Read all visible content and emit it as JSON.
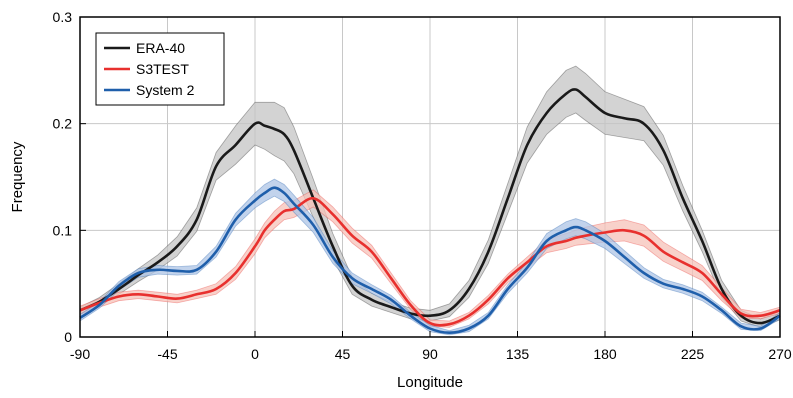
{
  "chart_data": {
    "type": "line",
    "title": "",
    "xlabel": "Longitude",
    "ylabel": "Frequency",
    "xlim": [
      -90,
      270
    ],
    "ylim": [
      0,
      0.3
    ],
    "x_ticks": [
      -90,
      -45,
      0,
      45,
      90,
      135,
      180,
      225,
      270
    ],
    "y_ticks": [
      0,
      0.1,
      0.2,
      0.3
    ],
    "x_tick_labels": [
      "-90",
      "-45",
      "0",
      "45",
      "90",
      "135",
      "180",
      "225",
      "270"
    ],
    "y_tick_labels": [
      "0",
      "0.1",
      "0.2",
      "0.3"
    ],
    "grid": true,
    "legend_position": "top-left",
    "x": [
      -90,
      -80,
      -70,
      -60,
      -50,
      -40,
      -30,
      -20,
      -10,
      0,
      5,
      10,
      15,
      20,
      30,
      40,
      50,
      60,
      70,
      80,
      90,
      100,
      110,
      120,
      130,
      140,
      150,
      160,
      165,
      170,
      180,
      190,
      200,
      210,
      220,
      230,
      240,
      250,
      260,
      270
    ],
    "series": [
      {
        "name": "ERA-40",
        "color": "#1a1a1a",
        "band_color": "#c4c4c4",
        "values": [
          0.025,
          0.033,
          0.045,
          0.058,
          0.07,
          0.085,
          0.11,
          0.16,
          0.18,
          0.2,
          0.198,
          0.195,
          0.19,
          0.175,
          0.13,
          0.085,
          0.048,
          0.035,
          0.028,
          0.022,
          0.02,
          0.025,
          0.045,
          0.08,
          0.13,
          0.18,
          0.21,
          0.228,
          0.232,
          0.225,
          0.21,
          0.205,
          0.2,
          0.175,
          0.13,
          0.09,
          0.045,
          0.02,
          0.013,
          0.02
        ],
        "band": [
          0.003,
          0.004,
          0.005,
          0.006,
          0.007,
          0.009,
          0.011,
          0.013,
          0.018,
          0.02,
          0.022,
          0.025,
          0.025,
          0.022,
          0.018,
          0.012,
          0.008,
          0.006,
          0.005,
          0.005,
          0.005,
          0.006,
          0.008,
          0.011,
          0.014,
          0.017,
          0.02,
          0.022,
          0.022,
          0.022,
          0.02,
          0.018,
          0.016,
          0.014,
          0.012,
          0.01,
          0.008,
          0.005,
          0.004,
          0.004
        ]
      },
      {
        "name": "S3TEST",
        "color": "#e8302e",
        "band_color": "#f6c2b8",
        "values": [
          0.025,
          0.032,
          0.038,
          0.04,
          0.038,
          0.036,
          0.04,
          0.045,
          0.06,
          0.085,
          0.1,
          0.11,
          0.118,
          0.12,
          0.13,
          0.115,
          0.095,
          0.08,
          0.055,
          0.03,
          0.013,
          0.012,
          0.02,
          0.035,
          0.055,
          0.07,
          0.085,
          0.09,
          0.093,
          0.095,
          0.098,
          0.1,
          0.095,
          0.08,
          0.07,
          0.06,
          0.04,
          0.022,
          0.02,
          0.025
        ],
        "band": [
          0.004,
          0.004,
          0.004,
          0.004,
          0.004,
          0.004,
          0.004,
          0.005,
          0.006,
          0.007,
          0.007,
          0.008,
          0.008,
          0.008,
          0.008,
          0.007,
          0.007,
          0.006,
          0.005,
          0.004,
          0.003,
          0.003,
          0.003,
          0.004,
          0.004,
          0.005,
          0.006,
          0.007,
          0.007,
          0.008,
          0.009,
          0.01,
          0.01,
          0.009,
          0.008,
          0.007,
          0.006,
          0.004,
          0.003,
          0.003
        ]
      },
      {
        "name": "System 2",
        "color": "#1f5fab",
        "band_color": "#aec4e6",
        "values": [
          0.018,
          0.03,
          0.048,
          0.06,
          0.063,
          0.062,
          0.063,
          0.08,
          0.11,
          0.128,
          0.135,
          0.14,
          0.135,
          0.125,
          0.105,
          0.075,
          0.055,
          0.045,
          0.035,
          0.02,
          0.008,
          0.004,
          0.008,
          0.02,
          0.045,
          0.065,
          0.09,
          0.1,
          0.103,
          0.1,
          0.09,
          0.075,
          0.06,
          0.05,
          0.045,
          0.038,
          0.025,
          0.01,
          0.008,
          0.02
        ],
        "band": [
          0.003,
          0.003,
          0.004,
          0.004,
          0.004,
          0.004,
          0.004,
          0.005,
          0.006,
          0.007,
          0.008,
          0.008,
          0.008,
          0.008,
          0.007,
          0.006,
          0.005,
          0.004,
          0.004,
          0.003,
          0.003,
          0.002,
          0.003,
          0.003,
          0.004,
          0.005,
          0.007,
          0.008,
          0.008,
          0.008,
          0.007,
          0.006,
          0.005,
          0.004,
          0.004,
          0.004,
          0.003,
          0.003,
          0.002,
          0.003
        ]
      }
    ]
  }
}
